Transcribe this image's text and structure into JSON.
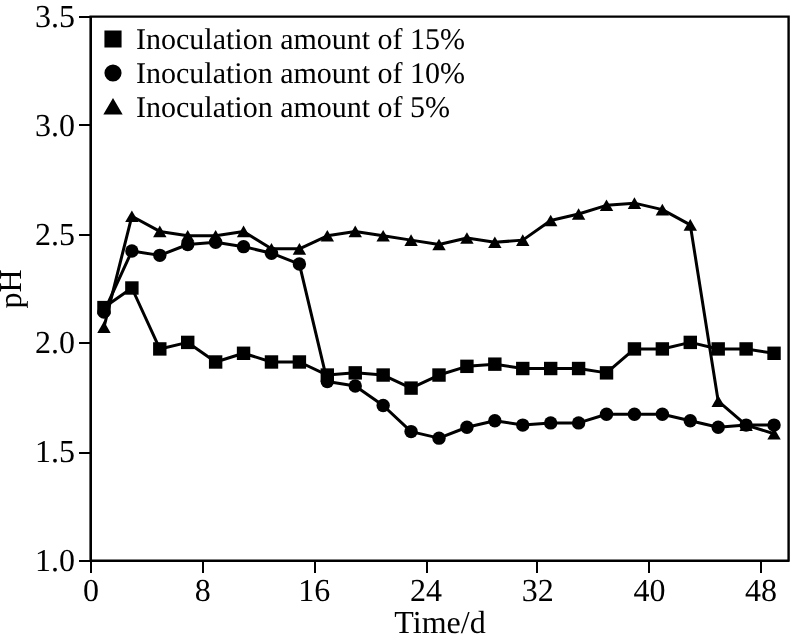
{
  "chart_data": {
    "type": "line",
    "xlabel": "Time/d",
    "ylabel": "pH",
    "x": [
      1,
      3,
      5,
      7,
      9,
      11,
      13,
      15,
      17,
      19,
      21,
      23,
      25,
      27,
      29,
      31,
      33,
      35,
      37,
      39,
      41,
      43,
      45,
      47,
      49
    ],
    "series": [
      {
        "name": "Inoculation amount of 15%",
        "color": "#000000",
        "marker": "square",
        "values": [
          2.16,
          2.25,
          1.97,
          2.0,
          1.91,
          1.95,
          1.91,
          1.91,
          1.85,
          1.86,
          1.85,
          1.79,
          1.85,
          1.89,
          1.9,
          1.88,
          1.88,
          1.88,
          1.86,
          1.97,
          1.97,
          2.0,
          1.97,
          1.97,
          1.95
        ]
      },
      {
        "name": "Inoculation amount of 10%",
        "color": "#000000",
        "marker": "circle",
        "values": [
          2.14,
          2.42,
          2.4,
          2.45,
          2.46,
          2.44,
          2.41,
          2.36,
          1.82,
          1.8,
          1.71,
          1.59,
          1.56,
          1.61,
          1.64,
          1.62,
          1.63,
          1.63,
          1.67,
          1.67,
          1.67,
          1.64,
          1.61,
          1.62,
          1.62
        ]
      },
      {
        "name": "Inoculation amount of 5%",
        "color": "#000000",
        "marker": "triangle",
        "values": [
          2.07,
          2.58,
          2.51,
          2.49,
          2.49,
          2.51,
          2.43,
          2.43,
          2.49,
          2.51,
          2.49,
          2.47,
          2.45,
          2.48,
          2.46,
          2.47,
          2.56,
          2.59,
          2.63,
          2.64,
          2.61,
          2.54,
          1.73,
          1.62,
          1.58
        ]
      }
    ],
    "xlim": [
      0,
      50
    ],
    "xticks": [
      0,
      8,
      16,
      24,
      32,
      40,
      48
    ],
    "ylim": [
      1.0,
      3.5
    ],
    "yticks": [
      {
        "value": 1,
        "label": "1.0"
      },
      {
        "value": 1.5,
        "label": "1.5"
      },
      {
        "value": 2,
        "label": "2.0"
      },
      {
        "value": 2.5,
        "label": "2.5"
      },
      {
        "value": 3,
        "label": "3.0"
      },
      {
        "value": 3.5,
        "label": "3.5"
      }
    ],
    "legend": "top left",
    "grid": false,
    "line_style": "solid"
  }
}
